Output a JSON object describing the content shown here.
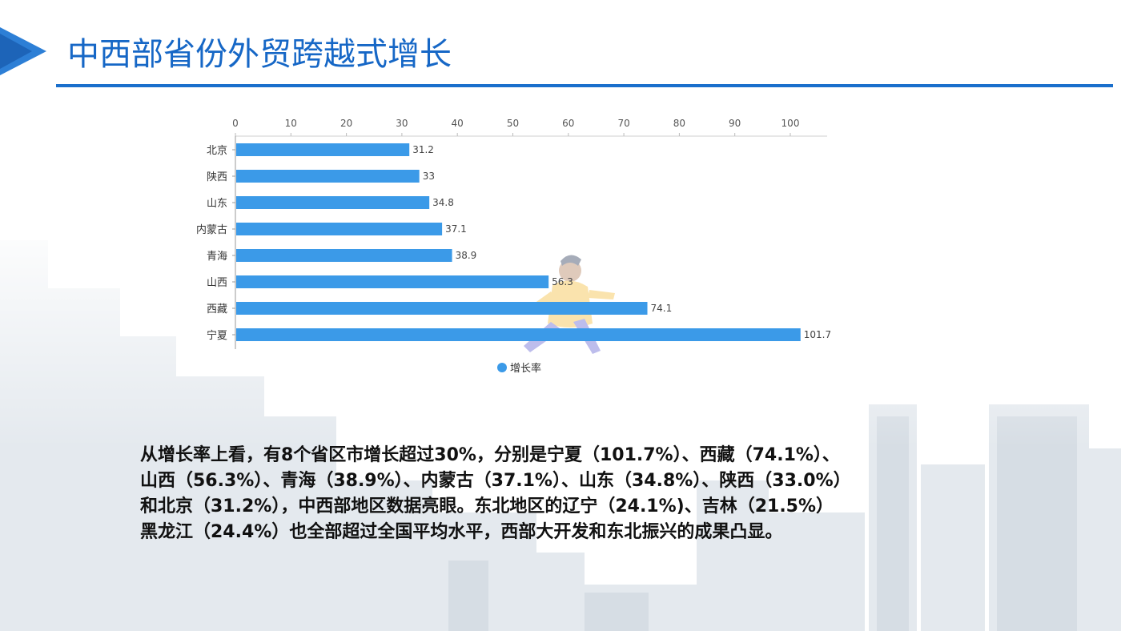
{
  "slide": {
    "title": "中西部省份外贸跨越式增长",
    "colors": {
      "title": "#1667c6",
      "rule": "#1a6fcc",
      "bar": "#3b9ae8",
      "deco": "#2d7fd6"
    }
  },
  "chart_data": {
    "type": "bar",
    "orientation": "horizontal",
    "categories": [
      "北京",
      "陕西",
      "山东",
      "内蒙古",
      "青海",
      "山西",
      "西藏",
      "宁夏"
    ],
    "series": [
      {
        "name": "增长率",
        "values": [
          31.2,
          33,
          34.8,
          37.1,
          38.9,
          56.3,
          74.1,
          101.7
        ],
        "value_labels": [
          "31.2",
          "33",
          "34.8",
          "37.1",
          "38.9",
          "56.3",
          "74.1",
          "101.7"
        ]
      }
    ],
    "xlim": [
      0,
      100
    ],
    "x_ticks": [
      0,
      10,
      20,
      30,
      40,
      50,
      60,
      70,
      80,
      90,
      100
    ],
    "x_tick_labels": [
      "0",
      "10",
      "20",
      "30",
      "40",
      "50",
      "60",
      "70",
      "80",
      "90",
      "100"
    ],
    "x_axis_position": "top",
    "legend_position": "bottom-center",
    "grid": false,
    "title": "",
    "xlabel": "",
    "ylabel": ""
  },
  "paragraph": {
    "lines": [
      "从增长率上看，有8个省区市增长超过30%，分别是宁夏（101.7%）、西藏（74.1%）、",
      "山西（56.3%）、青海（38.9%）、内蒙古（37.1%）、山东（34.8%）、陕西（33.0%）",
      "和北京（31.2%），中西部地区数据亮眼。东北地区的辽宁（24.1%)、吉林（21.5%）",
      "黑龙江（24.4%）也全部超过全国平均水平，西部大开发和东北振兴的成果凸显。"
    ]
  }
}
